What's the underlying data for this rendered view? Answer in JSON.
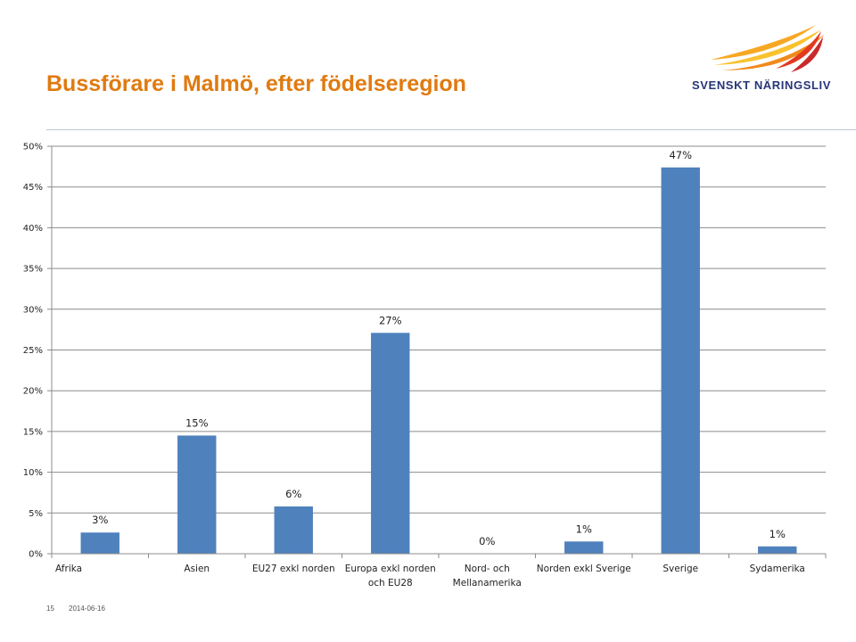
{
  "slide": {
    "title": "Bussförare i Malmö, efter födelseregion",
    "page_number": "15",
    "date": "2014-06-16"
  },
  "logo": {
    "text": "SVENSKT NÄRINGSLIV",
    "icon": "swoosh-wing-logo",
    "colors": [
      "#f7a823",
      "#e23a1f",
      "#27367a"
    ]
  },
  "chart_data": {
    "type": "bar",
    "categories": [
      "Afrika",
      "Asien",
      "EU27 exkl norden",
      "Europa exkl norden och EU28",
      "Nord- och Mellanamerika",
      "Norden exkl Sverige",
      "Sverige",
      "Sydamerika"
    ],
    "category_lines": [
      [
        "Afrika"
      ],
      [
        "Asien"
      ],
      [
        "EU27 exkl norden"
      ],
      [
        "Europa exkl norden",
        "och EU28"
      ],
      [
        "Nord- och",
        "Mellanamerika"
      ],
      [
        "Norden exkl Sverige"
      ],
      [
        "Sverige"
      ],
      [
        "Sydamerika"
      ]
    ],
    "values": [
      0.026,
      0.145,
      0.058,
      0.271,
      0.0,
      0.015,
      0.474,
      0.009
    ],
    "data_labels": [
      "3%",
      "15%",
      "6%",
      "27%",
      "0%",
      "1%",
      "47%",
      "1%"
    ],
    "ylim": [
      0,
      0.5
    ],
    "yticks": [
      0,
      0.05,
      0.1,
      0.15,
      0.2,
      0.25,
      0.3,
      0.35,
      0.4,
      0.45,
      0.5
    ],
    "ytick_labels": [
      "0%",
      "5%",
      "10%",
      "15%",
      "20%",
      "25%",
      "30%",
      "35%",
      "40%",
      "45%",
      "50%"
    ],
    "grid": true,
    "bar_color": "#4f81bd",
    "title": "",
    "xlabel": "",
    "ylabel": ""
  }
}
